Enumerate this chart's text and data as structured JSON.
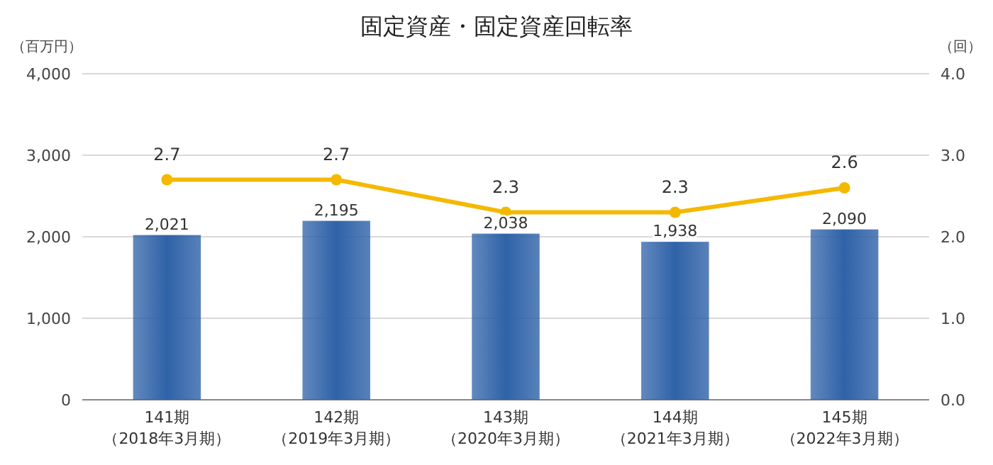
{
  "chart_data": {
    "type": "bar",
    "title": "固定資産・固定資産回転率",
    "ylabel": "（百万円）",
    "y2label": "（回）",
    "categories": [
      "141期（2018年3月期）",
      "142期（2019年3月期）",
      "143期（2020年3月期）",
      "144期（2021年3月期）",
      "145期（2022年3月期）"
    ],
    "series": [
      {
        "color": "#2f62a8",
        "values": [
          2021,
          2195,
          2038,
          1938,
          2090
        ],
        "value_labels": [
          "2,021",
          "2,195",
          "2,038",
          "1,938",
          "2,090"
        ]
      },
      {
        "type": "line",
        "axis": "y2",
        "color": "#f5b800",
        "marker": "circle",
        "values": [
          2.7,
          2.7,
          2.3,
          2.3,
          2.6
        ],
        "value_labels": [
          "2.7",
          "2.7",
          "2.3",
          "2.3",
          "2.6"
        ]
      }
    ],
    "ylim": [
      0,
      4000
    ],
    "yticks": [
      0,
      {
        "value": 1000,
        "label": "1,000"
      },
      {
        "value": 2000,
        "label": "2,000"
      },
      {
        "value": 3000,
        "label": "3,000"
      },
      {
        "value": 4000,
        "label": "4,000"
      }
    ],
    "y2lim": [
      0,
      4
    ],
    "y2ticks": [
      {
        "value": 0,
        "label": "0.0"
      },
      {
        "value": 1,
        "label": "1.0"
      },
      {
        "value": 2,
        "label": "2.0"
      },
      {
        "value": 3,
        "label": "3.0"
      },
      {
        "value": 4,
        "label": "4.0"
      }
    ],
    "grid": "y"
  }
}
